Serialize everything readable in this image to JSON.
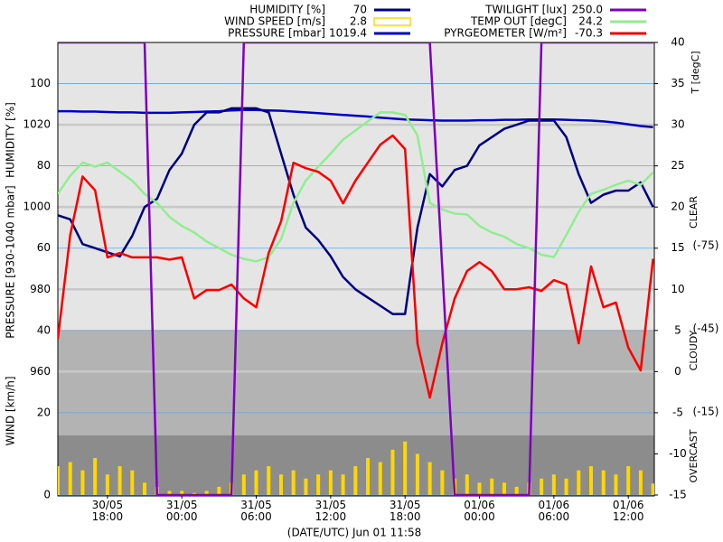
{
  "chart_data": {
    "type": "line",
    "xlabel": "(DATE/UTC) Jun 01 11:58",
    "xlim": [
      14,
      62.1
    ],
    "xticks": [
      {
        "value": 18,
        "label": "30/05\n18:00"
      },
      {
        "value": 24,
        "label": "31/05\n00:00"
      },
      {
        "value": 30,
        "label": "31/05\n06:00"
      },
      {
        "value": 36,
        "label": "31/05\n12:00"
      },
      {
        "value": 42,
        "label": "31/05\n18:00"
      },
      {
        "value": 48,
        "label": "01/06\n00:00"
      },
      {
        "value": 54,
        "label": "01/06\n06:00"
      },
      {
        "value": 60,
        "label": "01/06\n12:00"
      }
    ],
    "x": [
      14,
      15,
      16,
      17,
      18,
      19,
      20,
      21,
      22,
      23,
      24,
      25,
      26,
      27,
      28,
      29,
      30,
      31,
      32,
      33,
      34,
      35,
      36,
      37,
      38,
      39,
      40,
      41,
      42,
      43,
      44,
      45,
      46,
      47,
      48,
      49,
      50,
      51,
      52,
      53,
      54,
      55,
      56,
      57,
      58,
      59,
      60,
      61,
      62
    ],
    "ylabel": "HUMIDITY [%]",
    "ylim": [
      0,
      110
    ],
    "yticks": [
      40,
      60,
      80,
      100
    ],
    "y3label": "PRESSURE [930-1040 mbar]",
    "y3lim": [
      930,
      1040
    ],
    "y3ticks": [
      960,
      980,
      1000,
      1020
    ],
    "y4label": "WIND [km/h]",
    "y4lim": [
      0,
      110
    ],
    "y4ticks": [
      0,
      20
    ],
    "y2label": "T [degC]",
    "y2lim": [
      -15,
      40
    ],
    "y2ticks": [
      -15,
      -10,
      -5,
      0,
      5,
      10,
      15,
      20,
      25,
      30,
      35,
      40
    ],
    "y5lim": [
      15,
      -148.4
    ],
    "y5ticks": [
      {
        "value": -75,
        "label": "(-75)"
      },
      {
        "value": -45,
        "label": "(-45)"
      },
      {
        "value": -15,
        "label": "(-15)"
      }
    ],
    "y6lim": [
      0,
      250
    ],
    "annotations": [
      "CLEAR",
      "CLOUDY",
      "OVERCAST"
    ],
    "series": [
      {
        "name": "HUMIDITY [%]",
        "legend_value": "70",
        "color": "#000080",
        "axis": "y",
        "values": [
          68,
          67,
          61,
          60,
          59,
          58,
          63,
          70,
          72,
          79,
          83,
          90,
          93,
          93,
          94,
          94,
          94,
          93,
          83,
          73,
          65,
          62,
          58,
          53,
          50,
          48,
          46,
          44,
          44,
          65,
          78,
          75,
          79,
          80,
          85,
          87,
          89,
          90,
          91,
          91,
          91,
          87,
          78,
          71,
          73,
          74,
          74,
          76,
          70
        ]
      },
      {
        "name": "WIND SPEED [m/s]",
        "legend_value": "2.8",
        "color": "#ffd700",
        "axis": "y4",
        "kind": "bar",
        "values": [
          7,
          8,
          6,
          9,
          5,
          7,
          6,
          3,
          2,
          1,
          1,
          0.5,
          1,
          2,
          3,
          5,
          6,
          7,
          5,
          6,
          4,
          5,
          6,
          5,
          7,
          9,
          8,
          11,
          13,
          10,
          8,
          6,
          4,
          5,
          3,
          4,
          3,
          2,
          3,
          4,
          5,
          4,
          6,
          7,
          6,
          5,
          7,
          6,
          2.8
        ]
      },
      {
        "name": "PRESSURE [mbar]",
        "legend_value": "1019.4",
        "color": "#0000cc",
        "axis": "y3",
        "values": [
          1023.3,
          1023.3,
          1023.2,
          1023.2,
          1023.1,
          1023.0,
          1023.0,
          1022.9,
          1022.9,
          1022.9,
          1023.0,
          1023.1,
          1023.2,
          1023.3,
          1023.5,
          1023.6,
          1023.6,
          1023.5,
          1023.4,
          1023.2,
          1023.0,
          1022.8,
          1022.6,
          1022.4,
          1022.2,
          1022.0,
          1021.7,
          1021.5,
          1021.3,
          1021.2,
          1021.1,
          1021.0,
          1021.0,
          1021.0,
          1021.1,
          1021.1,
          1021.2,
          1021.2,
          1021.3,
          1021.3,
          1021.3,
          1021.2,
          1021.1,
          1021.0,
          1020.8,
          1020.5,
          1020.1,
          1019.7,
          1019.4
        ]
      },
      {
        "name": "TWILIGHT [lux]",
        "legend_value": "250.0",
        "color": "#8000c0",
        "axis": "y6",
        "values": [
          250,
          250,
          250,
          250,
          250,
          250,
          250,
          250,
          0,
          0,
          0,
          0,
          0,
          0,
          0,
          250,
          250,
          250,
          250,
          250,
          250,
          250,
          250,
          250,
          250,
          250,
          250,
          250,
          250,
          250,
          250,
          125,
          0,
          0,
          0,
          0,
          0,
          0,
          0,
          250,
          250,
          250,
          250,
          250,
          250,
          250,
          250,
          250,
          250
        ]
      },
      {
        "name": "TEMP OUT [degC]",
        "legend_value": "24.2",
        "color": "#90ee90",
        "axis": "y2",
        "values": [
          21.6,
          23.8,
          25.4,
          24.9,
          25.4,
          24.3,
          23.2,
          21.6,
          20.5,
          18.8,
          17.7,
          16.9,
          15.8,
          15.0,
          14.2,
          13.7,
          13.4,
          13.9,
          16.1,
          20.5,
          23.2,
          24.9,
          26.5,
          28.2,
          29.3,
          30.4,
          31.5,
          31.5,
          31.2,
          28.7,
          20.5,
          19.7,
          19.2,
          19.1,
          17.7,
          16.9,
          16.4,
          15.5,
          15.0,
          14.2,
          13.9,
          16.6,
          19.4,
          21.6,
          22.1,
          22.7,
          23.2,
          22.7,
          24.2
        ]
      },
      {
        "name": "PYRGEOMETER [W/m²]",
        "legend_value": "-70.3",
        "color": "#ff0000",
        "axis": "y5",
        "values": [
          -41.4,
          -78.9,
          -100,
          -95,
          -70.8,
          -72.4,
          -70.8,
          -70.8,
          -70.8,
          -70,
          -70.8,
          -56,
          -59,
          -59,
          -61,
          -56,
          -52.8,
          -72.4,
          -83.8,
          -105,
          -103,
          -101.7,
          -98.5,
          -90.3,
          -98.5,
          -105,
          -111.5,
          -114.8,
          -109.9,
          -39.8,
          -20.2,
          -39.8,
          -56,
          -65.9,
          -69.1,
          -65.9,
          -59.3,
          -59.3,
          -60,
          -58.7,
          -62.6,
          -61,
          -39.8,
          -67.5,
          -52.8,
          -54.5,
          -38.2,
          -30,
          -70.3
        ]
      }
    ]
  }
}
